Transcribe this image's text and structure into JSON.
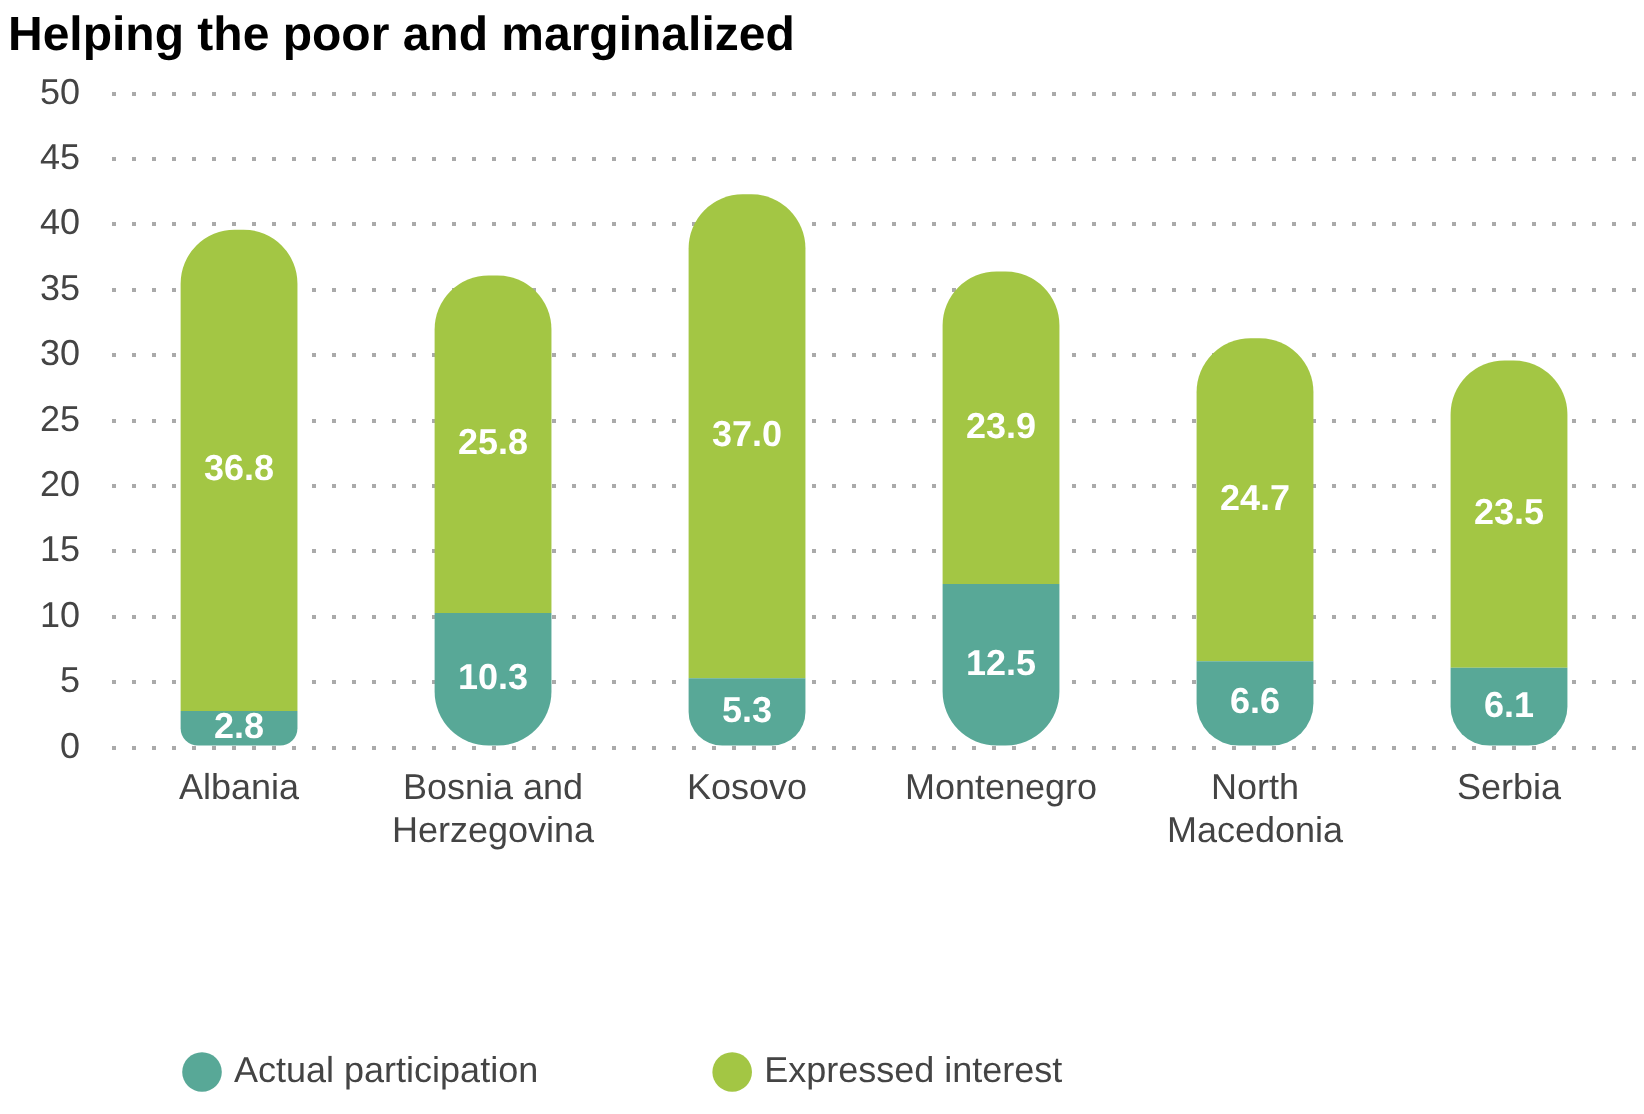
{
  "chart_data": {
    "type": "bar",
    "title": "Helping the poor and marginalized",
    "categories": [
      "Albania",
      "Bosnia and Herzegovina",
      "Kosovo",
      "Montenegro",
      "North Macedonia",
      "Serbia"
    ],
    "stacked": true,
    "ylim": [
      0,
      50
    ],
    "yticks": [
      0,
      5,
      10,
      15,
      20,
      25,
      30,
      35,
      40,
      45,
      50
    ],
    "grid": "y",
    "legend": "bottom left",
    "series": [
      {
        "name": "Actual participation",
        "color": "#58a897",
        "values": [
          2.8,
          10.3,
          5.3,
          12.5,
          6.6,
          6.1
        ],
        "value_labels": [
          "2.8",
          "10.3",
          "5.3",
          "12.5",
          "6.6",
          "6.1"
        ]
      },
      {
        "name": "Expressed interest",
        "color": "#a3c644",
        "values": [
          36.8,
          25.8,
          37.0,
          23.9,
          24.7,
          23.5
        ],
        "value_labels": [
          "36.8",
          "25.8",
          "37.0",
          "23.9",
          "24.7",
          "23.5"
        ]
      }
    ]
  }
}
